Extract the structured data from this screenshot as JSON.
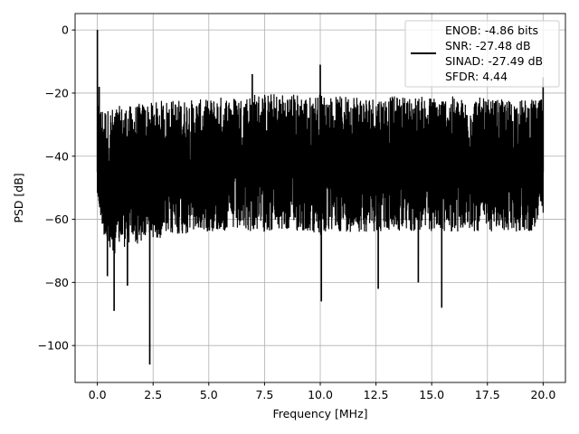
{
  "chart_data": {
    "type": "line",
    "xlabel": "Frequency [MHz]",
    "ylabel": "PSD [dB]",
    "xlim": [
      -1.0,
      21.0
    ],
    "ylim": [
      -111.7,
      5.2
    ],
    "xticks": [
      0.0,
      2.5,
      5.0,
      7.5,
      10.0,
      12.5,
      15.0,
      17.5,
      20.0
    ],
    "xtick_labels": [
      "0.0",
      "2.5",
      "5.0",
      "7.5",
      "10.0",
      "12.5",
      "15.0",
      "17.5",
      "20.0"
    ],
    "yticks": [
      0,
      -20,
      -40,
      -60,
      -80,
      -100
    ],
    "ytick_labels": [
      "0",
      "−20",
      "−40",
      "−60",
      "−80",
      "−100"
    ],
    "grid": true,
    "legend": {
      "placement": "top-right",
      "entries": [
        "ENOB: -4.86 bits",
        "SNR: -27.48 dB",
        "SINAD: -27.49 dB",
        "SFDR: 4.44"
      ]
    },
    "series": [
      {
        "name": "PSD",
        "color": "#000000",
        "envelope_x_step": 0.5,
        "upper": [
          -24,
          -25,
          -24,
          -24,
          -23,
          -23,
          -22,
          -22,
          -22,
          -22,
          -22,
          -21,
          -21,
          -21,
          -20,
          -20,
          -20,
          -20,
          -20,
          -21,
          -20,
          -21,
          -21,
          -20,
          -21,
          -21,
          -21,
          -21,
          -21,
          -21,
          -21,
          -21,
          -21,
          -22,
          -21,
          -22,
          -22,
          -22,
          -22,
          -22,
          -22
        ],
        "lower": [
          -55,
          -72,
          -70,
          -68,
          -68,
          -66,
          -66,
          -65,
          -65,
          -64,
          -64,
          -64,
          -64,
          -64,
          -64,
          -64,
          -64,
          -64,
          -64,
          -64,
          -66,
          -64,
          -64,
          -64,
          -64,
          -64,
          -64,
          -64,
          -64,
          -64,
          -64,
          -64,
          -64,
          -64,
          -64,
          -64,
          -64,
          -64,
          -64,
          -64,
          -60
        ],
        "peaks": [
          [
            0.0,
            0.0
          ],
          [
            0.08,
            -18
          ],
          [
            10.0,
            -11
          ],
          [
            6.95,
            -14
          ],
          [
            20.0,
            -15
          ]
        ],
        "dips": [
          [
            0.75,
            -89
          ],
          [
            1.35,
            -81
          ],
          [
            2.35,
            -106
          ],
          [
            10.05,
            -86
          ],
          [
            12.6,
            -82
          ],
          [
            14.4,
            -80
          ],
          [
            15.45,
            -88
          ],
          [
            0.45,
            -78
          ]
        ]
      }
    ]
  }
}
